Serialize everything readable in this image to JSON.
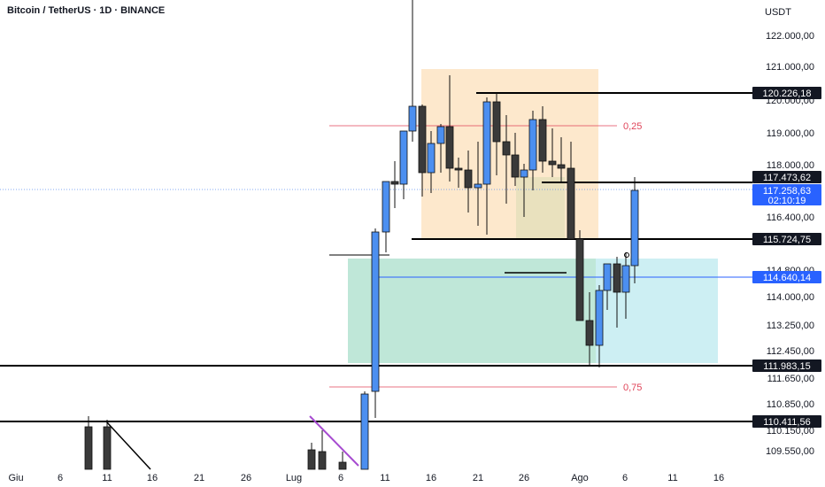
{
  "header": {
    "title": "Bitcoin / TetherUS · 1D · BINANCE",
    "currency": "USDT"
  },
  "chart_data": {
    "type": "candlestick",
    "y_ticks": [
      "122.000,00",
      "121.000,00",
      "120.000,00",
      "119.000,00",
      "118.000,00",
      "116.400,00",
      "114.800,00",
      "114.000,00",
      "113.250,00",
      "112.450,00",
      "111.650,00",
      "110.850,00",
      "110.150,00",
      "109.550,00"
    ],
    "x_ticks": [
      "Giu",
      "6",
      "11",
      "16",
      "21",
      "26",
      "Lug",
      "6",
      "11",
      "16",
      "21",
      "26",
      "Ago",
      "6",
      "11",
      "16"
    ],
    "price_tags": [
      {
        "label": "120.226,18",
        "style": "dark"
      },
      {
        "label": "117.473,62",
        "style": "dark"
      },
      {
        "label": "117.258,63",
        "sub": "02:10:19",
        "style": "blue"
      },
      {
        "label": "115.724,75",
        "style": "dark"
      },
      {
        "label": "114.640,14",
        "style": "blue"
      },
      {
        "label": "111.983,15",
        "style": "dark"
      },
      {
        "label": "110.411,56",
        "style": "dark"
      }
    ],
    "fib_labels": [
      "0,25",
      "0,75"
    ],
    "colors": {
      "up": "#4c8ff0",
      "down": "#3a3a3a",
      "outline": "#111111",
      "tag_dark": "#131722",
      "tag_blue": "#2962ff",
      "fib": "#e0455a",
      "zone_orange": "#fde8cc",
      "zone_cyan": "#cdeff3",
      "zone_green": "#b9e4cf",
      "trend": "#a64bd0"
    }
  }
}
